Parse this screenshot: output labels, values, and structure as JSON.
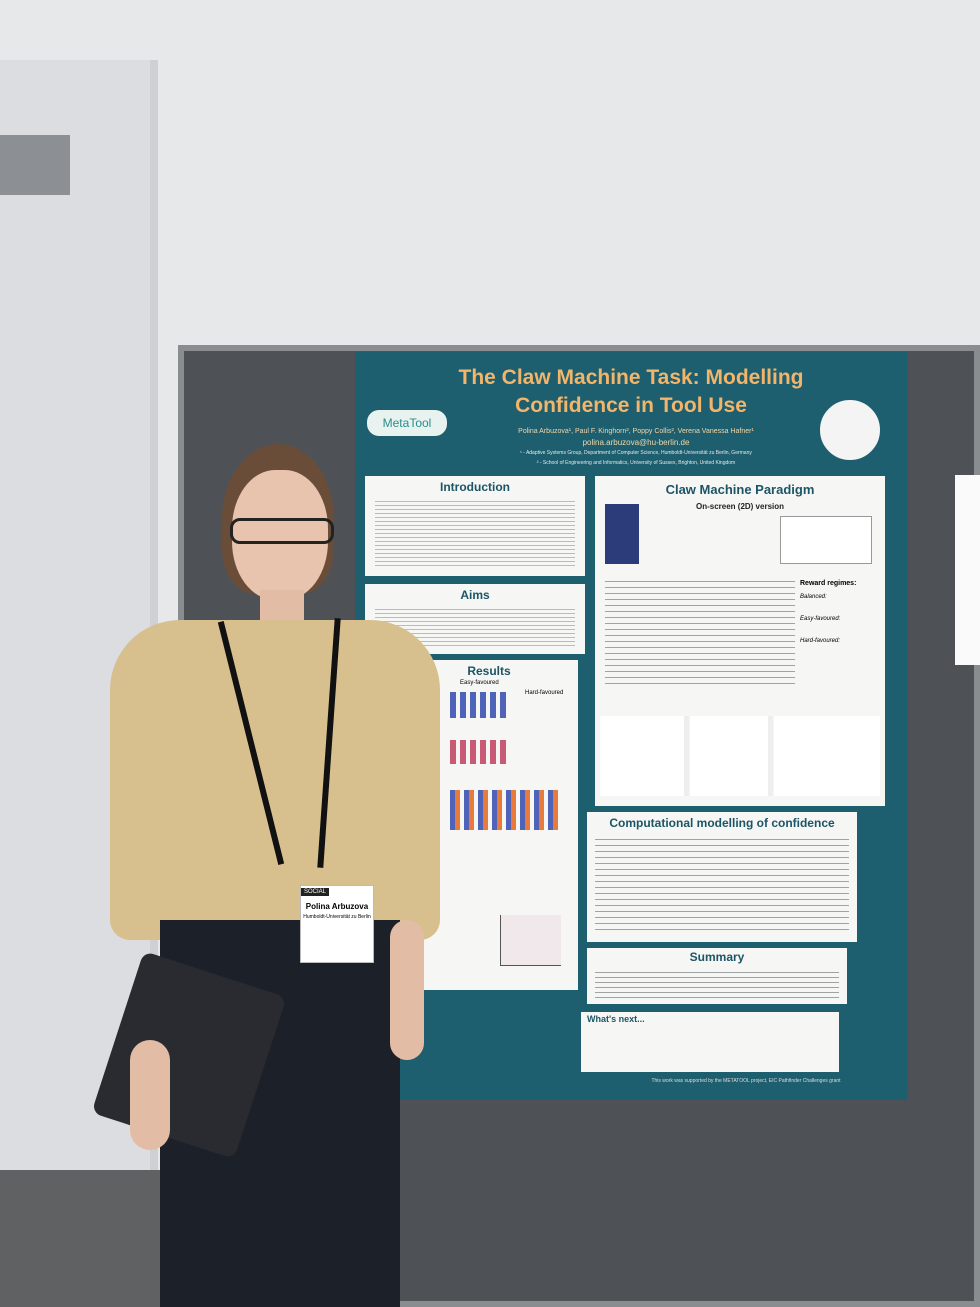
{
  "poster": {
    "title_line1": "The Claw Machine Task: Modelling",
    "title_line2": "Confidence in Tool Use",
    "logo": "MetaTool",
    "authors": "Polina Arbuzova¹, Paul F. Kinghorn², Poppy Collis², Verena Vanessa Hafner¹",
    "email": "polina.arbuzova@hu-berlin.de",
    "affiliations": [
      "¹ - Adaptive Systems Group, Department of Computer Science, Humboldt-Universität zu Berlin, Germany",
      "² - School of Engineering and Informatics, University of Sussex, Brighton, United Kingdom"
    ],
    "sections": {
      "introduction": "Introduction",
      "aims": "Aims",
      "results": "Results",
      "paradigm": "Claw Machine Paradigm",
      "paradigm_subtitle": "On-screen (2D) version",
      "reward_regimes": [
        "Reward regimes:",
        "Balanced:",
        "Easy-favoured:",
        "Hard-favoured:"
      ],
      "modelling": "Computational modelling of confidence",
      "summary": "Summary",
      "next": "What's next..."
    },
    "results_labels": [
      "Easy-favoured",
      "Hard-favoured"
    ],
    "funding": "This work was supported by the METATOOL project, EIC Pathfinder Challenges grant"
  },
  "badge": {
    "label": "SOCIAL",
    "name": "Polina Arbuzova",
    "affiliation": "Humboldt-Universität zu Berlin"
  }
}
